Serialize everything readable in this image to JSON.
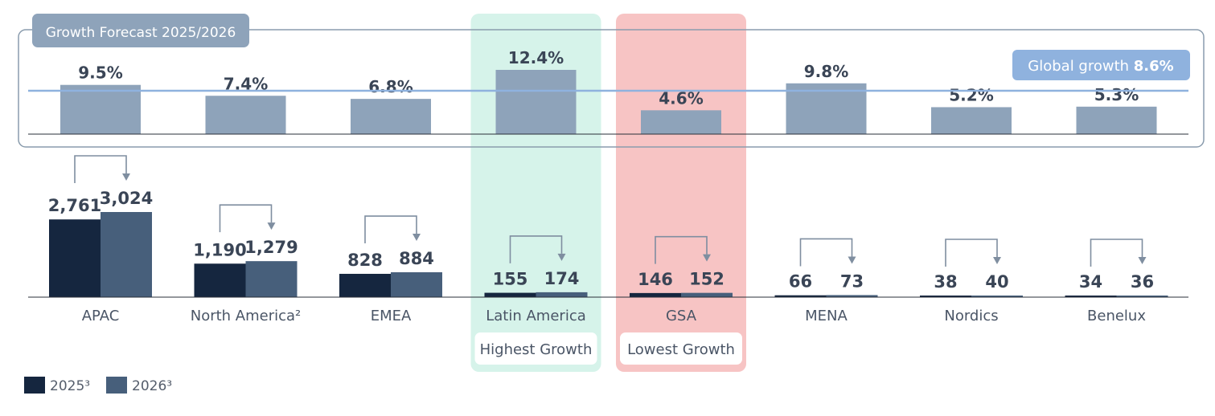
{
  "chart_data": [
    {
      "type": "bar",
      "title": "Growth Forecast 2025/2026",
      "categories": [
        "APAC",
        "North America²",
        "EMEA",
        "Latin America",
        "GSA",
        "MENA",
        "Nordics",
        "Benelux"
      ],
      "values": [
        9.5,
        7.4,
        6.8,
        12.4,
        4.6,
        9.8,
        5.2,
        5.3
      ],
      "value_labels": [
        "9.5%",
        "7.4%",
        "6.8%",
        "12.4%",
        "4.6%",
        "9.8%",
        "5.2%",
        "5.3%"
      ],
      "reference_line": {
        "label": "Global growth",
        "value": 8.6,
        "value_label": "8.6%"
      },
      "ylim": [
        0,
        14
      ]
    },
    {
      "type": "bar",
      "categories": [
        "APAC",
        "North America²",
        "EMEA",
        "Latin America",
        "GSA",
        "MENA",
        "Nordics",
        "Benelux"
      ],
      "series": [
        {
          "name": "2025³",
          "values": [
            2761,
            1190,
            828,
            155,
            146,
            66,
            38,
            34
          ],
          "labels": [
            "2,761",
            "1,190",
            "828",
            "155",
            "146",
            "66",
            "38",
            "34"
          ]
        },
        {
          "name": "2026³",
          "values": [
            3024,
            1279,
            884,
            174,
            152,
            73,
            40,
            36
          ],
          "labels": [
            "3,024",
            "1,279",
            "884",
            "174",
            "152",
            "73",
            "40",
            "36"
          ]
        }
      ],
      "ylim": [
        0,
        3100
      ],
      "legend_position": "bottom-left"
    }
  ],
  "highlights": [
    {
      "category": "Latin America",
      "label": "Highest Growth",
      "color": "#d6f3ea"
    },
    {
      "category": "GSA",
      "label": "Lowest Growth",
      "color": "#f7c4c4"
    }
  ],
  "colors": {
    "growth_bar": "#8ea3ba",
    "series_2025": "#15263f",
    "series_2026": "#475f7b",
    "global_line": "#8fb2de",
    "title_bg": "#8ea3ba"
  }
}
